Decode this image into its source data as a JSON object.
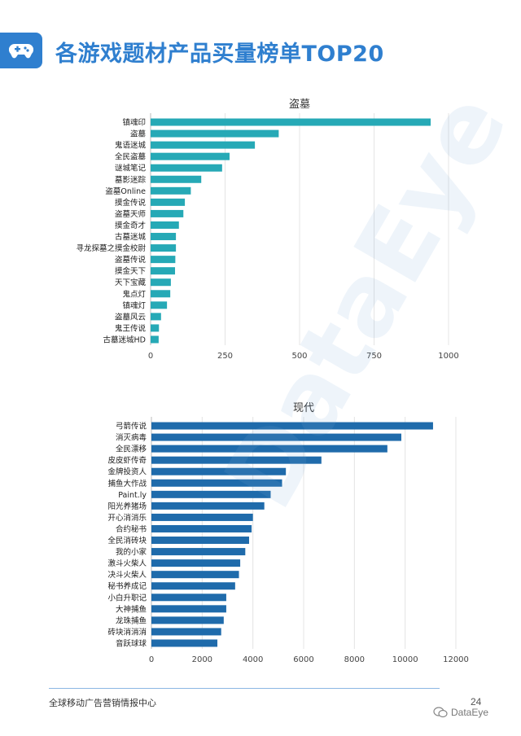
{
  "header": {
    "title": "各游戏题材产品买量榜单TOP20",
    "icon": "gamepad-icon"
  },
  "watermark": "DataEye",
  "footer": {
    "text": "全球移动广告营销情报中心",
    "page": "24",
    "brand": "DataEye",
    "brand_icon": "wechat-icon"
  },
  "chart_data": [
    {
      "type": "bar",
      "orientation": "horizontal",
      "title": "盗墓",
      "color": "#26a9b6",
      "categories": [
        "镇魂印",
        "盗墓",
        "鬼语迷城",
        "全民盗墓",
        "谜城笔记",
        "墓影迷踪",
        "盗墓Online",
        "摸金传说",
        "盗墓天师",
        "摸金奇才",
        "古墓迷城",
        "寻龙探墓之摸金校尉",
        "盗墓传说",
        "摸金天下",
        "天下宝藏",
        "鬼点灯",
        "镇魂灯",
        "盗墓风云",
        "鬼王传说",
        "古墓迷城HD"
      ],
      "values": [
        940,
        430,
        350,
        265,
        240,
        170,
        135,
        115,
        110,
        95,
        85,
        85,
        83,
        82,
        68,
        66,
        55,
        35,
        28,
        27
      ],
      "xlim": [
        0,
        1000
      ],
      "xticks": [
        0,
        250,
        500,
        750,
        1000
      ],
      "grid": true
    },
    {
      "type": "bar",
      "orientation": "horizontal",
      "title": "现代",
      "color": "#1f6bab",
      "categories": [
        "弓箭传说",
        "消灭病毒",
        "全民漂移",
        "皮皮虾传奇",
        "金牌投资人",
        "捕鱼大作战",
        "Paint.ly",
        "阳光养猪场",
        "开心消消乐",
        "合约秘书",
        "全民消砖块",
        "我的小家",
        "激斗火柴人",
        "决斗火柴人",
        "秘书养成记",
        "小白升职记",
        "大神捕鱼",
        "龙珠捕鱼",
        "砖块消消消",
        "音跃球球"
      ],
      "values": [
        11100,
        9850,
        9300,
        6700,
        5300,
        5150,
        4700,
        4450,
        4000,
        3950,
        3850,
        3700,
        3500,
        3450,
        3300,
        2950,
        2950,
        2850,
        2750,
        2600
      ],
      "xlim": [
        0,
        12000
      ],
      "xticks": [
        0,
        2000,
        4000,
        6000,
        8000,
        10000,
        12000
      ],
      "grid": true
    }
  ]
}
